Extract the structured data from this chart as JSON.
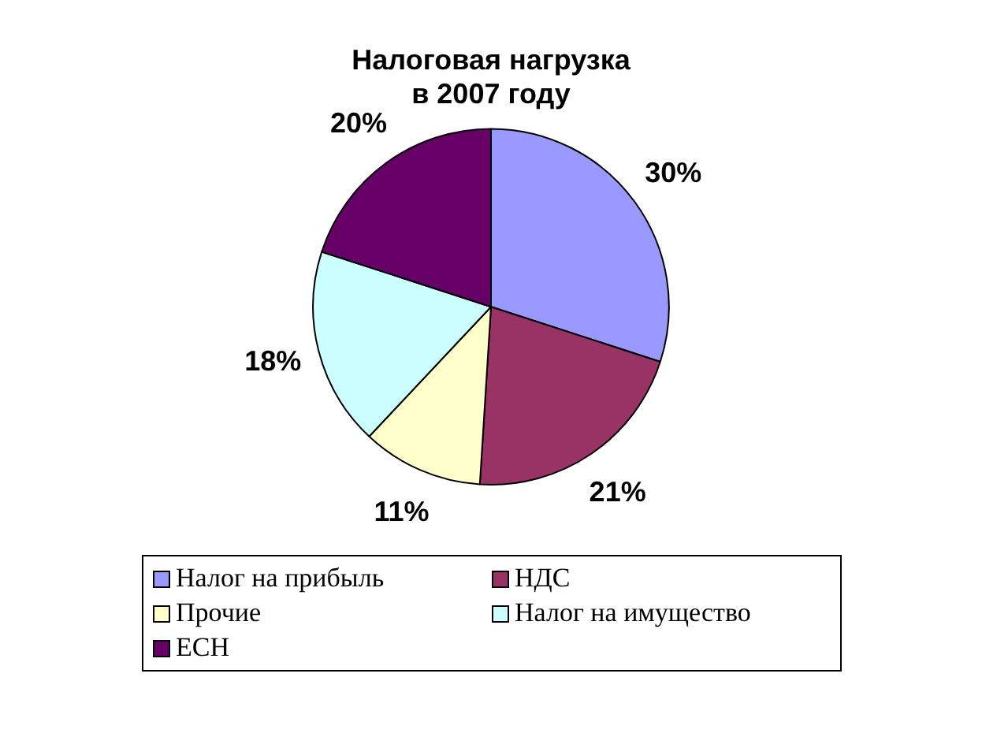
{
  "chart_data": {
    "type": "pie",
    "title": "Налоговая нагрузка\nв 2007 году",
    "categories": [
      "Налог на прибыль",
      "НДС",
      "Прочие",
      "Налог на имущество",
      "ЕСН"
    ],
    "values": [
      30,
      21,
      11,
      18,
      20
    ],
    "colors": [
      "#9999ff",
      "#993366",
      "#ffffcc",
      "#ccffff",
      "#660066"
    ],
    "value_labels": [
      "30%",
      "21%",
      "11%",
      "18%",
      "20%"
    ],
    "legend": "bottom"
  }
}
